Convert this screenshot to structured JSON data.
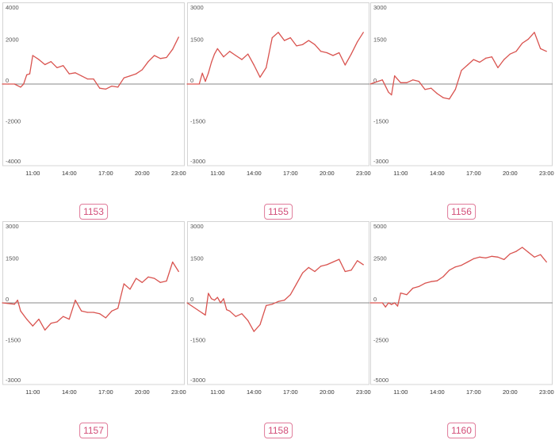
{
  "colors": {
    "line": "#d9534f",
    "zero_line": "#888888",
    "grid": "#e6e6e6",
    "badge": "#d24d78"
  },
  "chart_data": [
    {
      "type": "line",
      "badge": "1153",
      "x_ticks": [
        "11:00",
        "14:00",
        "17:00",
        "20:00",
        "23:00"
      ],
      "y_ticks": [
        4000,
        2000,
        0,
        -2000,
        -4000
      ],
      "y_tick_labels": [
        "4000",
        "2000",
        "0",
        "-2000",
        "-4000"
      ],
      "ylim": [
        -4000,
        4000
      ],
      "xlim": [
        8.5,
        23.5
      ],
      "x": [
        8.5,
        9.0,
        9.5,
        10.0,
        10.25,
        10.5,
        10.75,
        11.0,
        11.5,
        12.0,
        12.5,
        13.0,
        13.5,
        14.0,
        14.5,
        15.0,
        15.5,
        16.0,
        16.5,
        17.0,
        17.5,
        18.0,
        18.5,
        19.0,
        19.5,
        20.0,
        20.5,
        21.0,
        21.5,
        22.0,
        22.5,
        23.0
      ],
      "y": [
        0,
        0,
        0,
        -150,
        0,
        450,
        500,
        1400,
        1200,
        950,
        1100,
        800,
        900,
        500,
        550,
        400,
        250,
        250,
        -200,
        -250,
        -100,
        -150,
        300,
        400,
        500,
        700,
        1100,
        1400,
        1250,
        1300,
        1700,
        2300
      ]
    },
    {
      "type": "line",
      "badge": "1155",
      "x_ticks": [
        "11:00",
        "14:00",
        "17:00",
        "20:00",
        "23:00"
      ],
      "y_ticks": [
        3000,
        1500,
        0,
        -1500,
        -3000
      ],
      "y_tick_labels": [
        "3000",
        "1500",
        "0",
        "-1500",
        "-3000"
      ],
      "ylim": [
        -3000,
        3000
      ],
      "xlim": [
        8.5,
        23.5
      ],
      "x": [
        8.5,
        9.5,
        9.75,
        10.0,
        10.25,
        10.5,
        10.75,
        11.0,
        11.5,
        12.0,
        12.5,
        13.0,
        13.5,
        14.0,
        14.5,
        15.0,
        15.5,
        16.0,
        16.5,
        17.0,
        17.5,
        18.0,
        18.5,
        19.0,
        19.5,
        20.0,
        20.5,
        21.0,
        21.5,
        22.0,
        22.5,
        23.0
      ],
      "y": [
        0,
        0,
        400,
        100,
        400,
        800,
        1100,
        1300,
        1000,
        1200,
        1050,
        900,
        1100,
        700,
        250,
        600,
        1700,
        1900,
        1600,
        1700,
        1400,
        1450,
        1600,
        1450,
        1200,
        1150,
        1050,
        1150,
        700,
        1100,
        1550,
        1900
      ]
    },
    {
      "type": "line",
      "badge": "1156",
      "x_ticks": [
        "11:00",
        "14:00",
        "17:00",
        "20:00",
        "23:00"
      ],
      "y_ticks": [
        3000,
        1500,
        0,
        -1500,
        -3000
      ],
      "y_tick_labels": [
        "3000",
        "1500",
        "0",
        "-1500",
        "-3000"
      ],
      "ylim": [
        -3000,
        3000
      ],
      "xlim": [
        8.5,
        23.5
      ],
      "x": [
        8.5,
        9.5,
        10.0,
        10.25,
        10.5,
        11.0,
        11.5,
        12.0,
        12.5,
        13.0,
        13.5,
        14.0,
        14.5,
        15.0,
        15.5,
        16.0,
        16.5,
        17.0,
        17.5,
        18.0,
        18.5,
        19.0,
        19.5,
        20.0,
        20.5,
        21.0,
        21.5,
        22.0,
        22.5,
        23.0
      ],
      "y": [
        0,
        150,
        -300,
        -400,
        300,
        50,
        50,
        150,
        100,
        -200,
        -150,
        -350,
        -500,
        -550,
        -200,
        500,
        700,
        900,
        800,
        950,
        1000,
        600,
        900,
        1100,
        1200,
        1500,
        1650,
        1900,
        1300,
        1200
      ]
    },
    {
      "type": "line",
      "badge": "1157",
      "x_ticks": [
        "11:00",
        "14:00",
        "17:00",
        "20:00",
        "23:00"
      ],
      "y_ticks": [
        3000,
        1500,
        0,
        -1500,
        -3000
      ],
      "y_tick_labels": [
        "3000",
        "1500",
        "0",
        "-1500",
        "-3000"
      ],
      "ylim": [
        -3000,
        3000
      ],
      "xlim": [
        8.5,
        23.5
      ],
      "x": [
        8.5,
        9.5,
        9.75,
        10.0,
        10.5,
        11.0,
        11.5,
        12.0,
        12.5,
        13.0,
        13.5,
        14.0,
        14.5,
        15.0,
        15.5,
        16.0,
        16.5,
        17.0,
        17.5,
        18.0,
        18.5,
        19.0,
        19.5,
        20.0,
        20.5,
        21.0,
        21.5,
        22.0,
        22.5,
        23.0
      ],
      "y": [
        0,
        -50,
        100,
        -300,
        -600,
        -850,
        -600,
        -1000,
        -750,
        -700,
        -500,
        -600,
        100,
        -300,
        -350,
        -350,
        -400,
        -550,
        -300,
        -200,
        700,
        500,
        900,
        750,
        950,
        900,
        750,
        800,
        1500,
        1150
      ]
    },
    {
      "type": "line",
      "badge": "1158",
      "x_ticks": [
        "11:00",
        "14:00",
        "17:00",
        "20:00",
        "23:00"
      ],
      "y_ticks": [
        3000,
        1500,
        0,
        -1500,
        -3000
      ],
      "y_tick_labels": [
        "3000",
        "1500",
        "0",
        "-1500",
        "-3000"
      ],
      "ylim": [
        -3000,
        3000
      ],
      "xlim": [
        8.5,
        23.5
      ],
      "x": [
        8.5,
        10.0,
        10.25,
        10.5,
        10.75,
        11.0,
        11.25,
        11.5,
        11.75,
        12.0,
        12.5,
        13.0,
        13.5,
        14.0,
        14.5,
        15.0,
        15.5,
        16.0,
        16.5,
        17.0,
        17.5,
        18.0,
        18.5,
        19.0,
        19.5,
        20.0,
        20.5,
        21.0,
        21.5,
        22.0,
        22.5,
        23.0
      ],
      "y": [
        0,
        -450,
        350,
        150,
        100,
        200,
        0,
        150,
        -250,
        -300,
        -500,
        -400,
        -650,
        -1050,
        -800,
        -100,
        -50,
        50,
        100,
        300,
        700,
        1100,
        1300,
        1150,
        1350,
        1400,
        1500,
        1600,
        1150,
        1200,
        1550,
        1400
      ]
    },
    {
      "type": "line",
      "badge": "1160",
      "x_ticks": [
        "11:00",
        "14:00",
        "17:00",
        "20:00",
        "23:00"
      ],
      "y_ticks": [
        5000,
        2500,
        0,
        -2500,
        -5000
      ],
      "y_tick_labels": [
        "5000",
        "2500",
        "0",
        "-2500",
        "-5000"
      ],
      "ylim": [
        -5000,
        5000
      ],
      "xlim": [
        8.5,
        23.5
      ],
      "x": [
        8.5,
        9.5,
        9.75,
        10.0,
        10.25,
        10.5,
        10.75,
        11.0,
        11.5,
        12.0,
        12.5,
        13.0,
        13.5,
        14.0,
        14.5,
        15.0,
        15.5,
        16.0,
        16.5,
        17.0,
        17.5,
        18.0,
        18.5,
        19.0,
        19.5,
        20.0,
        20.5,
        21.0,
        21.5,
        22.0,
        22.5,
        23.0
      ],
      "y": [
        0,
        0,
        -250,
        0,
        -100,
        0,
        -200,
        600,
        500,
        900,
        1000,
        1200,
        1300,
        1350,
        1600,
        2000,
        2200,
        2300,
        2500,
        2700,
        2800,
        2750,
        2850,
        2800,
        2650,
        3000,
        3150,
        3400,
        3100,
        2800,
        2950,
        2500
      ]
    }
  ]
}
